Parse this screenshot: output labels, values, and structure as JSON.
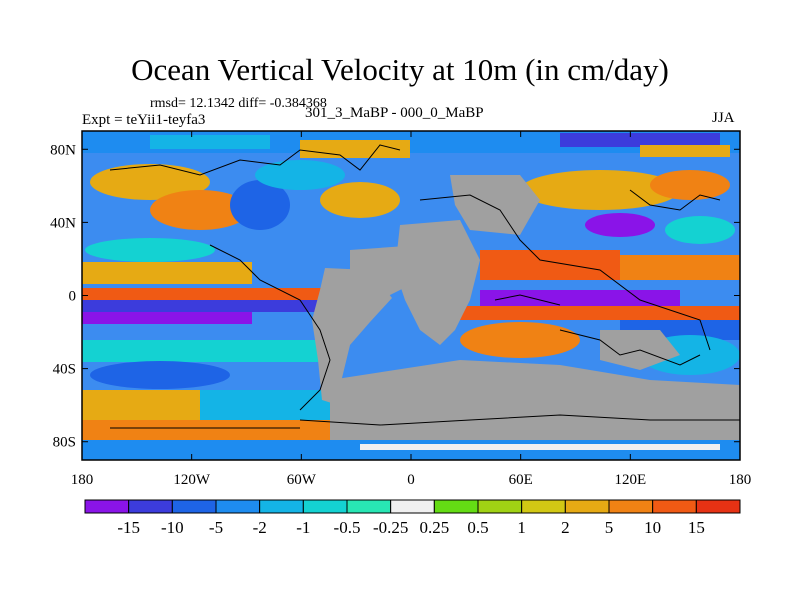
{
  "title": "Ocean Vertical Velocity at 10m (in cm/day)",
  "stats": "rmsd= 12.1342  diff= -0.384368",
  "experiment": "Expt = teYii1-teyfa3",
  "comparison": "301_3_MaBP - 000_0_MaBP",
  "season": "JJA",
  "map": {
    "lat_ticks": [
      "80N",
      "40N",
      "0",
      "40S",
      "80S"
    ],
    "lat_values": [
      80,
      40,
      0,
      -40,
      -80
    ],
    "lon_ticks": [
      "180",
      "120W",
      "60W",
      "0",
      "60E",
      "120E",
      "180"
    ],
    "lon_values": [
      -180,
      -120,
      -60,
      0,
      60,
      120,
      180
    ],
    "land_color": "#a0a0a0",
    "lat_range": [
      -90,
      90
    ],
    "lon_range": [
      -180,
      180
    ]
  },
  "colorbar": {
    "labels": [
      "-15",
      "-10",
      "-5",
      "-2",
      "-1",
      "-0.5",
      "-0.25",
      "0.25",
      "0.5",
      "1",
      "2",
      "5",
      "10",
      "15"
    ],
    "colors": [
      "#8a14e8",
      "#3c3cdc",
      "#1e64e6",
      "#1e8cf0",
      "#14b4e6",
      "#14d2d2",
      "#28e6b4",
      "#f0f0f0",
      "#64dc14",
      "#a0d214",
      "#d2c814",
      "#e6aa14",
      "#f08214",
      "#f05a14",
      "#e63214"
    ]
  }
}
